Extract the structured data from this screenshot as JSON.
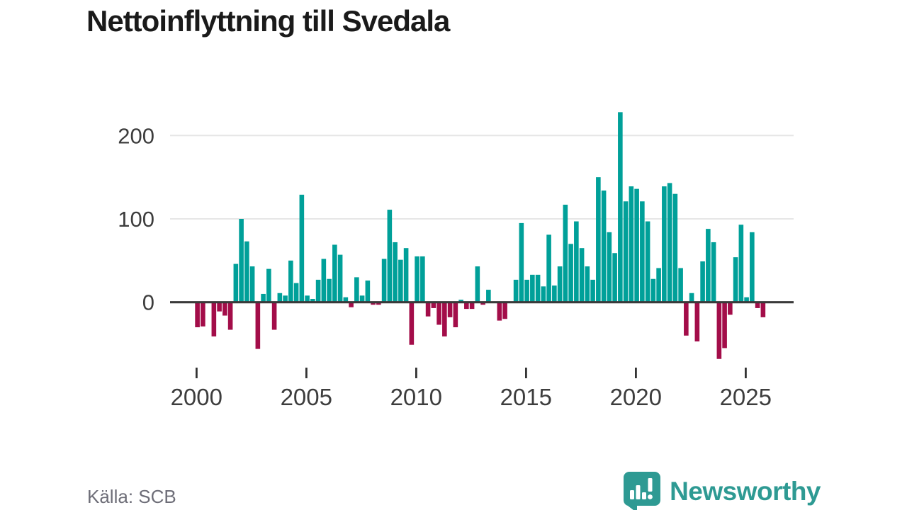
{
  "title": "Nettoinflyttning till Svedala",
  "footer": {
    "source": "Källa: SCB",
    "brand": "Newsworthy"
  },
  "colors": {
    "positive": "#00A099",
    "negative": "#A30D49",
    "grid": "#E6E6E6",
    "axis": "#3A3A3A",
    "tick_text": "#3D3D3D",
    "source_text": "#6E6E78",
    "brand": "#2E9A93",
    "title_text": "#1A1A1A"
  },
  "chart_data": {
    "type": "bar",
    "title": "Nettoinflyttning till Svedala",
    "source": "Källa: SCB",
    "period": "quarterly",
    "start_year": 2000,
    "periods_per_year": 4,
    "values": [
      -30,
      -29,
      0,
      -41,
      -11,
      -16,
      -33,
      46,
      100,
      73,
      43,
      -56,
      10,
      40,
      -33,
      11,
      8,
      50,
      23,
      129,
      8,
      4,
      27,
      52,
      28,
      69,
      57,
      6,
      -6,
      30,
      8,
      26,
      -3,
      -3,
      52,
      111,
      72,
      51,
      65,
      -51,
      55,
      55,
      -17,
      -7,
      -27,
      -41,
      -18,
      -30,
      3,
      -8,
      -8,
      43,
      -3,
      15,
      0,
      -22,
      -20,
      0,
      27,
      95,
      27,
      33,
      33,
      19,
      81,
      20,
      43,
      117,
      70,
      97,
      65,
      43,
      27,
      150,
      134,
      84,
      59,
      228,
      121,
      139,
      136,
      121,
      97,
      28,
      41,
      139,
      143,
      130,
      41,
      -40,
      11,
      -47,
      49,
      88,
      72,
      -68,
      -55,
      -15,
      54,
      93,
      6,
      84,
      -7,
      -18
    ],
    "x_ticks": [
      2000,
      2005,
      2010,
      2015,
      2020,
      2025
    ],
    "y_ticks": [
      0,
      100,
      200
    ],
    "ylim": [
      -80,
      245
    ],
    "grid": "horizontal",
    "legend": "none",
    "positive_color": "#00A099",
    "negative_color": "#A30D49"
  }
}
